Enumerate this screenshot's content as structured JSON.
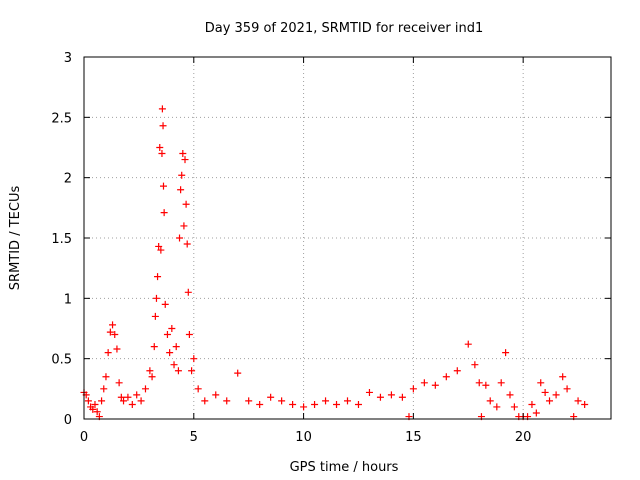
{
  "chart_data": {
    "type": "scatter",
    "title": "Day 359 of 2021, SRMTID for receiver ind1",
    "xlabel": "GPS time / hours",
    "ylabel": "SRMTID / TECUs",
    "xlim": [
      0,
      24
    ],
    "ylim": [
      0,
      3
    ],
    "x_ticks": [
      0,
      5,
      10,
      15,
      20
    ],
    "x_tick_labels": [
      "0",
      "5",
      "10",
      "15",
      "20"
    ],
    "y_ticks": [
      0,
      0.5,
      1,
      1.5,
      2,
      2.5,
      3
    ],
    "y_tick_labels": [
      "0",
      "0.5",
      "1",
      "1.5",
      "2",
      "2.5",
      "3"
    ],
    "grid": true,
    "marker": "+",
    "series": [
      {
        "name": "ind1",
        "color": "#ff0000",
        "points": [
          [
            0.0,
            0.22
          ],
          [
            0.1,
            0.2
          ],
          [
            0.2,
            0.15
          ],
          [
            0.3,
            0.1
          ],
          [
            0.4,
            0.08
          ],
          [
            0.5,
            0.12
          ],
          [
            0.6,
            0.06
          ],
          [
            0.7,
            0.02
          ],
          [
            0.8,
            0.15
          ],
          [
            0.9,
            0.25
          ],
          [
            1.0,
            0.35
          ],
          [
            1.1,
            0.55
          ],
          [
            1.2,
            0.72
          ],
          [
            1.3,
            0.78
          ],
          [
            1.4,
            0.7
          ],
          [
            1.5,
            0.58
          ],
          [
            1.6,
            0.3
          ],
          [
            1.7,
            0.18
          ],
          [
            1.8,
            0.15
          ],
          [
            2.0,
            0.18
          ],
          [
            2.2,
            0.12
          ],
          [
            2.4,
            0.2
          ],
          [
            2.6,
            0.15
          ],
          [
            2.8,
            0.25
          ],
          [
            3.0,
            0.4
          ],
          [
            3.1,
            0.35
          ],
          [
            3.2,
            0.6
          ],
          [
            3.25,
            0.85
          ],
          [
            3.3,
            1.0
          ],
          [
            3.35,
            1.18
          ],
          [
            3.4,
            1.43
          ],
          [
            3.45,
            2.25
          ],
          [
            3.5,
            1.4
          ],
          [
            3.55,
            2.2
          ],
          [
            3.57,
            2.57
          ],
          [
            3.6,
            2.43
          ],
          [
            3.62,
            1.93
          ],
          [
            3.65,
            1.71
          ],
          [
            3.7,
            0.95
          ],
          [
            3.8,
            0.7
          ],
          [
            3.9,
            0.55
          ],
          [
            4.0,
            0.75
          ],
          [
            4.1,
            0.45
          ],
          [
            4.2,
            0.6
          ],
          [
            4.3,
            0.4
          ],
          [
            4.35,
            1.5
          ],
          [
            4.4,
            1.9
          ],
          [
            4.45,
            2.02
          ],
          [
            4.5,
            2.2
          ],
          [
            4.55,
            1.6
          ],
          [
            4.6,
            2.15
          ],
          [
            4.65,
            1.78
          ],
          [
            4.7,
            1.45
          ],
          [
            4.75,
            1.05
          ],
          [
            4.8,
            0.7
          ],
          [
            4.9,
            0.4
          ],
          [
            5.0,
            0.5
          ],
          [
            5.2,
            0.25
          ],
          [
            5.5,
            0.15
          ],
          [
            6.0,
            0.2
          ],
          [
            6.5,
            0.15
          ],
          [
            7.0,
            0.38
          ],
          [
            7.5,
            0.15
          ],
          [
            8.0,
            0.12
          ],
          [
            8.5,
            0.18
          ],
          [
            9.0,
            0.15
          ],
          [
            9.5,
            0.12
          ],
          [
            10.0,
            0.1
          ],
          [
            10.5,
            0.12
          ],
          [
            11.0,
            0.15
          ],
          [
            11.5,
            0.12
          ],
          [
            12.0,
            0.15
          ],
          [
            12.5,
            0.12
          ],
          [
            13.0,
            0.22
          ],
          [
            13.5,
            0.18
          ],
          [
            14.0,
            0.2
          ],
          [
            14.5,
            0.18
          ],
          [
            14.8,
            0.02
          ],
          [
            15.0,
            0.25
          ],
          [
            15.5,
            0.3
          ],
          [
            16.0,
            0.28
          ],
          [
            16.5,
            0.35
          ],
          [
            17.0,
            0.4
          ],
          [
            17.5,
            0.62
          ],
          [
            17.8,
            0.45
          ],
          [
            18.0,
            0.3
          ],
          [
            18.1,
            0.02
          ],
          [
            18.3,
            0.28
          ],
          [
            18.5,
            0.15
          ],
          [
            18.8,
            0.1
          ],
          [
            19.0,
            0.3
          ],
          [
            19.2,
            0.55
          ],
          [
            19.4,
            0.2
          ],
          [
            19.6,
            0.1
          ],
          [
            19.8,
            0.02
          ],
          [
            20.0,
            0.02
          ],
          [
            20.2,
            0.02
          ],
          [
            20.4,
            0.12
          ],
          [
            20.6,
            0.05
          ],
          [
            20.8,
            0.3
          ],
          [
            21.0,
            0.22
          ],
          [
            21.2,
            0.15
          ],
          [
            21.5,
            0.2
          ],
          [
            21.8,
            0.35
          ],
          [
            22.0,
            0.25
          ],
          [
            22.3,
            0.02
          ],
          [
            22.5,
            0.15
          ],
          [
            22.8,
            0.12
          ]
        ]
      }
    ]
  }
}
